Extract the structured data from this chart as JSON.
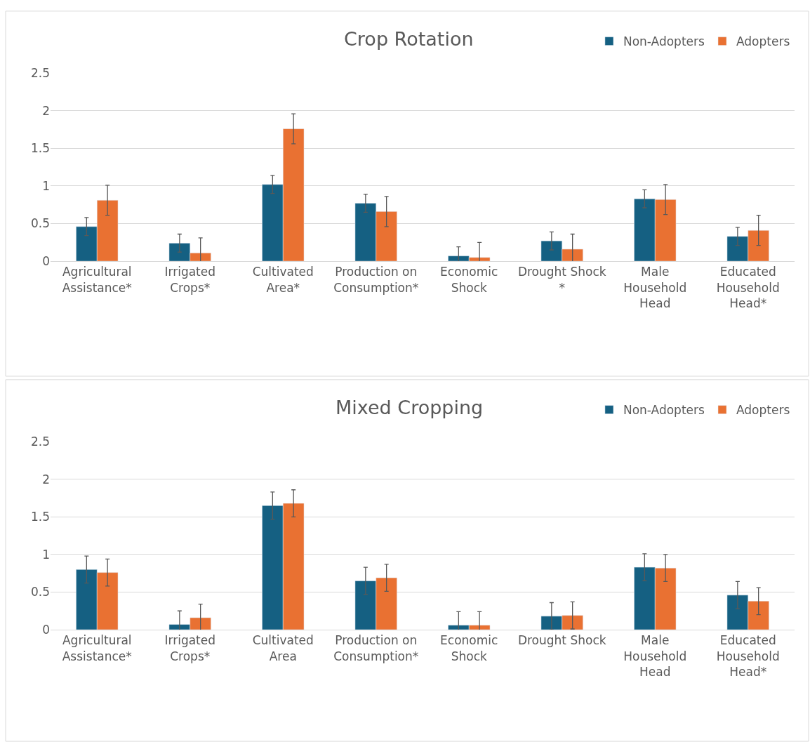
{
  "chart_data": [
    {
      "type": "bar",
      "title": "Crop Rotation",
      "categories": [
        "Agricultural Assistance*",
        "Irrigated Crops*",
        "Cultivated Area*",
        "Production on Consumption*",
        "Economic Shock",
        "Drought Shock *",
        "Male Household Head",
        "Educated Household Head*"
      ],
      "series": [
        {
          "name": "Non-Adopters",
          "color": "#156082",
          "values": [
            0.46,
            0.24,
            1.02,
            0.77,
            0.07,
            0.27,
            0.83,
            0.33
          ],
          "errors": [
            0.12,
            0.12,
            0.12,
            0.12,
            0.12,
            0.12,
            0.12,
            0.12
          ]
        },
        {
          "name": "Adopters",
          "color": "#e97132",
          "values": [
            0.81,
            0.11,
            1.76,
            0.66,
            0.05,
            0.16,
            0.82,
            0.41
          ],
          "errors": [
            0.2,
            0.2,
            0.2,
            0.2,
            0.2,
            0.2,
            0.2,
            0.2
          ]
        }
      ],
      "ylim": [
        0,
        2.5
      ],
      "yticks": [
        0,
        0.5,
        1,
        1.5,
        2,
        2.5
      ],
      "grid": "y",
      "legend": "top right"
    },
    {
      "type": "bar",
      "title": "Mixed Cropping",
      "categories": [
        "Agricultural Assistance*",
        "Irrigated Crops*",
        "Cultivated Area",
        "Production on Consumption*",
        "Economic Shock",
        "Drought Shock",
        "Male Household Head",
        "Educated Household Head*"
      ],
      "series": [
        {
          "name": "Non-Adopters",
          "color": "#156082",
          "values": [
            0.8,
            0.07,
            1.65,
            0.65,
            0.06,
            0.18,
            0.83,
            0.46
          ],
          "errors": [
            0.18,
            0.18,
            0.18,
            0.18,
            0.18,
            0.18,
            0.18,
            0.18
          ]
        },
        {
          "name": "Adopters",
          "color": "#e97132",
          "values": [
            0.76,
            0.16,
            1.68,
            0.69,
            0.06,
            0.19,
            0.82,
            0.38
          ],
          "errors": [
            0.18,
            0.18,
            0.18,
            0.18,
            0.18,
            0.18,
            0.18,
            0.18
          ]
        }
      ],
      "ylim": [
        0,
        2.5
      ],
      "yticks": [
        0,
        0.5,
        1,
        1.5,
        2,
        2.5
      ],
      "grid": "y",
      "legend": "top right"
    }
  ]
}
